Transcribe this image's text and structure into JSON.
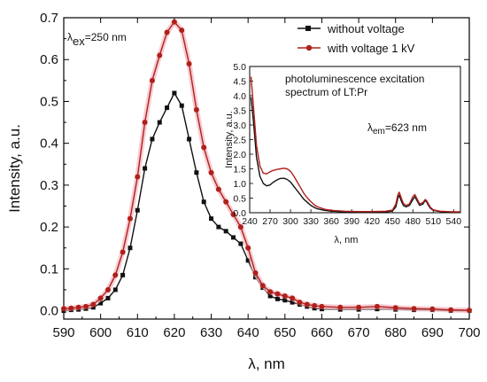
{
  "chart_data": [
    {
      "type": "line",
      "xlabel": "λ, nm",
      "ylabel": "Intensity, a.u.",
      "xlim": [
        590,
        700
      ],
      "ylim": [
        -0.02,
        0.7
      ],
      "xticks": [
        "590",
        "600",
        "610",
        "620",
        "630",
        "640",
        "650",
        "660",
        "670",
        "680",
        "690",
        "700"
      ],
      "yticks": [
        "0.0",
        "0.1",
        "0.2",
        "0.3",
        "0.4",
        "0.5",
        "0.6",
        "0.7"
      ],
      "annotation": {
        "main": "λ",
        "sub": "ex",
        "rest": "=250 nm"
      },
      "legend_position": "top-right",
      "series": [
        {
          "name": "without voltage",
          "color": "#111111",
          "marker": "square",
          "x": [
            590,
            592,
            594,
            596,
            598,
            600,
            602,
            604,
            606,
            608,
            610,
            612,
            614,
            616,
            618,
            620,
            622,
            624,
            626,
            628,
            630,
            632,
            634,
            636,
            638,
            640,
            642,
            644,
            646,
            648,
            650,
            652,
            654,
            656,
            658,
            660,
            665,
            670,
            675,
            680,
            685,
            690,
            695,
            700
          ],
          "y": [
            0.0,
            0.002,
            0.003,
            0.005,
            0.008,
            0.018,
            0.03,
            0.05,
            0.085,
            0.15,
            0.24,
            0.34,
            0.41,
            0.45,
            0.485,
            0.52,
            0.49,
            0.41,
            0.33,
            0.26,
            0.22,
            0.2,
            0.19,
            0.175,
            0.16,
            0.12,
            0.08,
            0.055,
            0.035,
            0.028,
            0.025,
            0.02,
            0.015,
            0.01,
            0.006,
            0.004,
            0.003,
            0.003,
            0.004,
            0.003,
            0.002,
            0.002,
            0.0,
            0.0
          ]
        },
        {
          "name": "with voltage 1 kV",
          "color": "#b0201a",
          "marker": "circle",
          "x": [
            590,
            592,
            594,
            596,
            598,
            600,
            602,
            604,
            606,
            608,
            610,
            612,
            614,
            616,
            618,
            620,
            622,
            624,
            626,
            628,
            630,
            632,
            634,
            636,
            638,
            640,
            642,
            644,
            646,
            648,
            650,
            652,
            654,
            656,
            658,
            660,
            665,
            670,
            675,
            680,
            685,
            690,
            695,
            700
          ],
          "y": [
            0.005,
            0.006,
            0.008,
            0.01,
            0.015,
            0.03,
            0.05,
            0.085,
            0.14,
            0.22,
            0.32,
            0.45,
            0.55,
            0.61,
            0.665,
            0.69,
            0.67,
            0.59,
            0.48,
            0.39,
            0.33,
            0.29,
            0.26,
            0.23,
            0.2,
            0.15,
            0.09,
            0.06,
            0.045,
            0.04,
            0.035,
            0.03,
            0.02,
            0.015,
            0.012,
            0.01,
            0.008,
            0.008,
            0.01,
            0.007,
            0.005,
            0.004,
            0.002,
            0.001
          ]
        }
      ]
    },
    {
      "type": "line",
      "title": "photoluminescence excitation spectrum of LT:Pr",
      "title_lines": [
        "photoluminescence excitation",
        "spectrum of LT:Pr"
      ],
      "xlabel": "λ, nm",
      "ylabel": "Intensity, a.u.",
      "xlim": [
        240,
        550
      ],
      "ylim": [
        0,
        5.0
      ],
      "xticks": [
        "240",
        "270",
        "300",
        "330",
        "360",
        "390",
        "420",
        "450",
        "480",
        "510",
        "540"
      ],
      "yticks": [
        "0.0",
        "0.5",
        "1.0",
        "1.5",
        "2.0",
        "2.5",
        "3.0",
        "3.5",
        "4.0",
        "4.5",
        "5.0"
      ],
      "annotation": {
        "main": "λ",
        "sub": "em",
        "rest": "=623 nm"
      },
      "series": [
        {
          "name": "without voltage",
          "color": "#111111",
          "x": [
            242,
            246,
            250,
            255,
            260,
            265,
            270,
            275,
            280,
            285,
            290,
            295,
            300,
            305,
            310,
            315,
            320,
            325,
            330,
            335,
            340,
            350,
            360,
            380,
            400,
            420,
            440,
            450,
            455,
            458,
            460,
            463,
            466,
            470,
            475,
            480,
            483,
            486,
            490,
            495,
            498,
            500,
            503,
            506,
            510,
            520,
            530,
            540,
            550
          ],
          "y": [
            3.95,
            3.0,
            1.9,
            1.25,
            1.0,
            0.92,
            0.95,
            1.05,
            1.12,
            1.17,
            1.18,
            1.14,
            1.05,
            0.9,
            0.75,
            0.6,
            0.45,
            0.35,
            0.25,
            0.18,
            0.13,
            0.08,
            0.05,
            0.03,
            0.02,
            0.02,
            0.03,
            0.06,
            0.2,
            0.5,
            0.6,
            0.4,
            0.25,
            0.2,
            0.25,
            0.45,
            0.55,
            0.42,
            0.25,
            0.3,
            0.42,
            0.38,
            0.25,
            0.15,
            0.08,
            0.04,
            0.03,
            0.02,
            0.02
          ]
        },
        {
          "name": "with voltage 1 kV",
          "color": "#b0201a",
          "x": [
            242,
            246,
            250,
            255,
            260,
            265,
            270,
            275,
            280,
            285,
            290,
            295,
            300,
            305,
            310,
            315,
            320,
            325,
            330,
            335,
            340,
            350,
            360,
            380,
            400,
            420,
            440,
            450,
            455,
            458,
            460,
            463,
            466,
            470,
            475,
            480,
            483,
            486,
            490,
            495,
            498,
            500,
            503,
            506,
            510,
            520,
            530,
            540,
            550
          ],
          "y": [
            4.65,
            3.5,
            2.3,
            1.6,
            1.35,
            1.33,
            1.4,
            1.45,
            1.48,
            1.5,
            1.52,
            1.5,
            1.42,
            1.25,
            1.05,
            0.85,
            0.65,
            0.5,
            0.38,
            0.27,
            0.2,
            0.12,
            0.08,
            0.05,
            0.04,
            0.04,
            0.05,
            0.09,
            0.3,
            0.62,
            0.7,
            0.5,
            0.32,
            0.25,
            0.3,
            0.55,
            0.62,
            0.48,
            0.3,
            0.35,
            0.45,
            0.42,
            0.3,
            0.18,
            0.1,
            0.05,
            0.04,
            0.03,
            0.03
          ]
        }
      ]
    }
  ]
}
